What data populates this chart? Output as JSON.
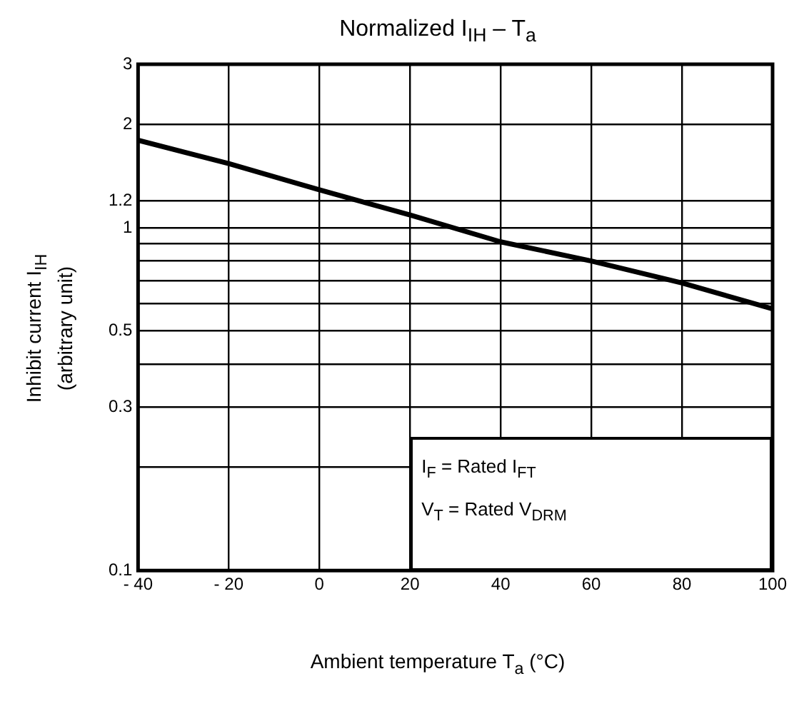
{
  "chart_data": {
    "type": "line",
    "title": "Normalized   I$_{IH}$ – T$_{a}$",
    "xlabel": "Ambient temperature   T$_{a}$   (°C)",
    "ylabel": "Inhibit current   I$_{IH}$\n(arbitrary unit)",
    "x": [
      -40,
      -20,
      0,
      20,
      40,
      60,
      80,
      100
    ],
    "series": [
      {
        "color": "#000000",
        "values": [
          1.8,
          1.54,
          1.29,
          1.09,
          0.91,
          0.8,
          0.69,
          0.58
        ]
      }
    ],
    "xlim": [
      -40,
      100
    ],
    "xticks": [
      {
        "value": -40,
        "label": "- 40"
      },
      {
        "value": -20,
        "label": "- 20"
      },
      0,
      20,
      40,
      60,
      80,
      100
    ],
    "ylim": [
      0.1,
      3
    ],
    "yticks": [
      0.1,
      {
        "value": 0.2,
        "label": null
      },
      0.3,
      {
        "value": 0.4,
        "label": null
      },
      0.5,
      {
        "value": 0.6,
        "label": null
      },
      {
        "value": 0.7,
        "label": null
      },
      {
        "value": 0.8,
        "label": null
      },
      {
        "value": 0.9,
        "label": null
      },
      1,
      1.2,
      2,
      3
    ],
    "log": "y",
    "grid": true,
    "legend": false,
    "marker": "none",
    "line_style": "solid",
    "annotations": [
      "I$_{F}$ = Rated I$_{FT}$",
      "V$_{T}$ = Rated V$_{DRM}$"
    ]
  }
}
